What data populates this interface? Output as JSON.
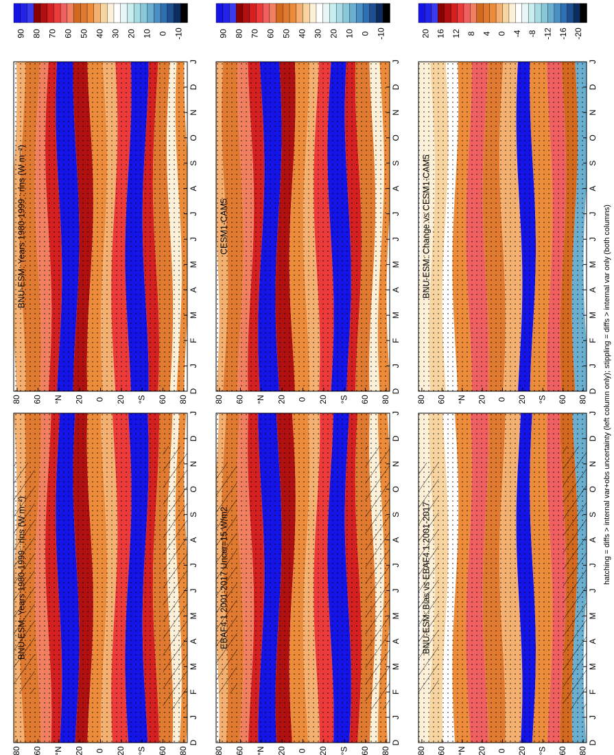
{
  "figure": {
    "footnote": "hatching = diffs > internal var+obs uncertainty (left column only); stippling = diffs > internal var only (both columns)"
  },
  "panels": [
    {
      "title": "BNU-ESM: Years 1980-1999 : rlns (W m⁻²)",
      "kind": "abs"
    },
    {
      "title": "BNU-ESM: Years 1980-1999 : rlns (W m⁻²)",
      "kind": "abs"
    },
    {
      "title": "EBAF4.1 2001-2017 Uncer=15 W/m2",
      "kind": "abs"
    },
    {
      "title": "CESM1-CAM5",
      "kind": "abs"
    },
    {
      "title": "BNU-ESM: Bias vs EBAF4.1 2001-2017",
      "kind": "diff"
    },
    {
      "title": "BNU-ESM: Change vs CESM1-CAM5",
      "kind": "diff"
    }
  ],
  "axes": {
    "month_labels": [
      "D",
      "J",
      "F",
      "M",
      "A",
      "M",
      "J",
      "J",
      "A",
      "S",
      "O",
      "N",
      "D",
      "J"
    ],
    "lat_labels": [
      "80",
      "60",
      "°N",
      "20",
      "0",
      "20",
      "°S",
      "60",
      "80"
    ]
  },
  "colorbars": {
    "abs": {
      "labels": [
        "90",
        "80",
        "70",
        "60",
        "50",
        "40",
        "30",
        "20",
        "10",
        "0",
        "-10"
      ],
      "colors": [
        "#1414e6",
        "#2323e8",
        "#3a3aee",
        "#8b0000",
        "#b01010",
        "#d42020",
        "#ec3a3a",
        "#f06060",
        "#f08060",
        "#d2691e",
        "#e07a30",
        "#ec8c3a",
        "#f4b070",
        "#f8d4a0",
        "#fdf0d8",
        "#ffffff",
        "#e8f6f8",
        "#c8eef0",
        "#a8dce4",
        "#88c8d8",
        "#6aaed0",
        "#4a90c4",
        "#2e70b0",
        "#1c4e90",
        "#0c2c60",
        "#000000"
      ]
    },
    "diff": {
      "labels": [
        "20",
        "16",
        "12",
        "8",
        "4",
        "0",
        "-4",
        "-8",
        "-12",
        "-16",
        "-20"
      ],
      "colors": [
        "#1414e6",
        "#2323e8",
        "#3a3aee",
        "#8b0000",
        "#b01010",
        "#d42020",
        "#ec3a3a",
        "#f06060",
        "#f08060",
        "#d2691e",
        "#e07a30",
        "#ec8c3a",
        "#f4b070",
        "#f8d4a0",
        "#fdf0d8",
        "#ffffff",
        "#e8f6f8",
        "#c8eef0",
        "#a8dce4",
        "#88c8d8",
        "#6aaed0",
        "#4a90c4",
        "#2e70b0",
        "#1c4e90",
        "#0c2c60",
        "#000000"
      ]
    }
  },
  "chart_data": [
    {
      "type": "heatmap",
      "title": "BNU-ESM: Years 1980-1999 : rlns (W m⁻²)",
      "xlabel": "month",
      "ylabel": "latitude",
      "x": [
        "D",
        "J",
        "F",
        "M",
        "A",
        "M",
        "J",
        "J",
        "A",
        "S",
        "O",
        "N",
        "D",
        "J"
      ],
      "y": [
        80,
        60,
        40,
        20,
        0,
        -20,
        -40,
        -60,
        -80
      ],
      "colorbar_range": [
        -10,
        90
      ],
      "description_values": {
        "tropics_min": 10,
        "subtropics_max": 70,
        "midlat": 40,
        "poles": 30
      }
    },
    {
      "type": "heatmap",
      "title": "BNU-ESM: Years 1980-1999 : rlns (W m⁻²)",
      "xlabel": "month",
      "ylabel": "latitude",
      "x": [
        "D",
        "J",
        "F",
        "M",
        "A",
        "M",
        "J",
        "J",
        "A",
        "S",
        "O",
        "N",
        "D",
        "J"
      ],
      "y": [
        80,
        60,
        40,
        20,
        0,
        -20,
        -40,
        -60,
        -80
      ],
      "colorbar_range": [
        -10,
        90
      ]
    },
    {
      "type": "heatmap",
      "title": "EBAF4.1 2001-2017 Uncer=15 W/m2",
      "xlabel": "month",
      "ylabel": "latitude",
      "x": [
        "D",
        "J",
        "F",
        "M",
        "A",
        "M",
        "J",
        "J",
        "A",
        "S",
        "O",
        "N",
        "D",
        "J"
      ],
      "y": [
        80,
        60,
        40,
        20,
        0,
        -20,
        -40,
        -60,
        -80
      ],
      "colorbar_range": [
        -10,
        90
      ]
    },
    {
      "type": "heatmap",
      "title": "CESM1-CAM5",
      "xlabel": "month",
      "ylabel": "latitude",
      "x": [
        "D",
        "J",
        "F",
        "M",
        "A",
        "M",
        "J",
        "J",
        "A",
        "S",
        "O",
        "N",
        "D",
        "J"
      ],
      "y": [
        80,
        60,
        40,
        20,
        0,
        -20,
        -40,
        -60,
        -80
      ],
      "colorbar_range": [
        -10,
        90
      ]
    },
    {
      "type": "heatmap",
      "title": "BNU-ESM: Bias vs EBAF4.1 2001-2017",
      "xlabel": "month",
      "ylabel": "latitude",
      "x": [
        "D",
        "J",
        "F",
        "M",
        "A",
        "M",
        "J",
        "J",
        "A",
        "S",
        "O",
        "N",
        "D",
        "J"
      ],
      "y": [
        80,
        60,
        40,
        20,
        0,
        -20,
        -40,
        -60,
        -80
      ],
      "colorbar_range": [
        -20,
        20
      ]
    },
    {
      "type": "heatmap",
      "title": "BNU-ESM: Change vs CESM1-CAM5",
      "xlabel": "month",
      "ylabel": "latitude",
      "x": [
        "D",
        "J",
        "F",
        "M",
        "A",
        "M",
        "J",
        "J",
        "A",
        "S",
        "O",
        "N",
        "D",
        "J"
      ],
      "y": [
        80,
        60,
        40,
        20,
        0,
        -20,
        -40,
        -60,
        -80
      ],
      "colorbar_range": [
        -20,
        20
      ]
    }
  ]
}
